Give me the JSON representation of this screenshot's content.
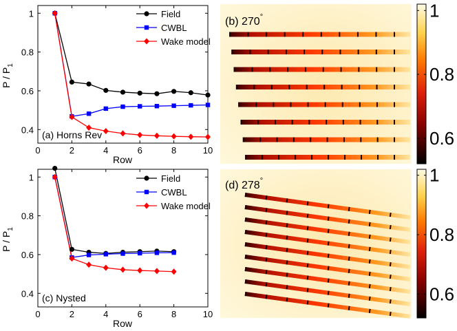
{
  "chart_data": [
    {
      "type": "line",
      "panel_label": "(a) Horns Rev",
      "xlabel": "Row",
      "ylabel_main": "P / P",
      "ylabel_sub": "1",
      "xlim": [
        0,
        10
      ],
      "ylim": [
        0.33,
        1.04
      ],
      "xticks": [
        "0",
        "2",
        "4",
        "6",
        "8",
        "10"
      ],
      "yticks": [
        "0.4",
        "0.6",
        "0.8",
        "1"
      ],
      "series": [
        {
          "name": "Field",
          "color": "#000000",
          "marker": "circle",
          "x": [
            1,
            2,
            3,
            4,
            5,
            6,
            7,
            8,
            9,
            10
          ],
          "values": [
            1.0,
            0.645,
            0.635,
            0.602,
            0.593,
            0.588,
            0.585,
            0.597,
            0.59,
            0.578
          ]
        },
        {
          "name": "CWBL",
          "color": "#0000ff",
          "marker": "square",
          "x": [
            1,
            2,
            3,
            4,
            5,
            6,
            7,
            8,
            9,
            10
          ],
          "values": [
            1.0,
            0.468,
            0.482,
            0.508,
            0.518,
            0.52,
            0.521,
            0.523,
            0.525,
            0.527
          ]
        },
        {
          "name": "Wake model",
          "color": "#ff0000",
          "marker": "diamond",
          "x": [
            1,
            2,
            3,
            4,
            5,
            6,
            7,
            8,
            9,
            10
          ],
          "values": [
            1.0,
            0.465,
            0.41,
            0.392,
            0.38,
            0.372,
            0.368,
            0.365,
            0.363,
            0.362
          ]
        }
      ]
    },
    {
      "type": "line",
      "panel_label": "(c) Nysted",
      "xlabel": "Row",
      "ylabel_main": "P / P",
      "ylabel_sub": "1",
      "xlim": [
        0,
        10
      ],
      "ylim": [
        0.33,
        1.04
      ],
      "xticks": [
        "0",
        "2",
        "4",
        "6",
        "8",
        "10"
      ],
      "yticks": [
        "0.4",
        "0.6",
        "0.8",
        "1"
      ],
      "series": [
        {
          "name": "Field",
          "color": "#000000",
          "marker": "circle",
          "x": [
            1,
            2,
            3,
            4,
            5,
            6,
            7,
            8
          ],
          "values": [
            1.045,
            0.627,
            0.612,
            0.606,
            0.612,
            0.615,
            0.618,
            0.615
          ]
        },
        {
          "name": "CWBL",
          "color": "#0000ff",
          "marker": "square",
          "x": [
            1,
            2,
            3,
            4,
            5,
            6,
            7,
            8
          ],
          "values": [
            1.0,
            0.585,
            0.598,
            0.602,
            0.605,
            0.607,
            0.609,
            0.61
          ]
        },
        {
          "name": "Wake model",
          "color": "#ff0000",
          "marker": "diamond",
          "x": [
            1,
            2,
            3,
            4,
            5,
            6,
            7,
            8
          ],
          "values": [
            1.0,
            0.58,
            0.548,
            0.532,
            0.522,
            0.518,
            0.515,
            0.512
          ]
        }
      ]
    },
    {
      "type": "heatmap",
      "panel_label": "(b) 270",
      "degree_mark": "°",
      "colorbar_ticks": [
        "1",
        "0.8",
        "0.6"
      ],
      "colorbar_tick_values": [
        1.0,
        0.8,
        0.6
      ],
      "colorbar_range": [
        0.52,
        1.02
      ],
      "wind_direction_deg": 270,
      "turbine_rows": 8,
      "turbines_per_row": 10
    },
    {
      "type": "heatmap",
      "panel_label": "(d) 278",
      "degree_mark": "°",
      "colorbar_ticks": [
        "1",
        "0.8",
        "0.6"
      ],
      "colorbar_tick_values": [
        1.0,
        0.8,
        0.6
      ],
      "colorbar_range": [
        0.52,
        1.02
      ],
      "wind_direction_deg": 278,
      "turbine_rows": 9,
      "turbines_per_row": 8
    }
  ]
}
